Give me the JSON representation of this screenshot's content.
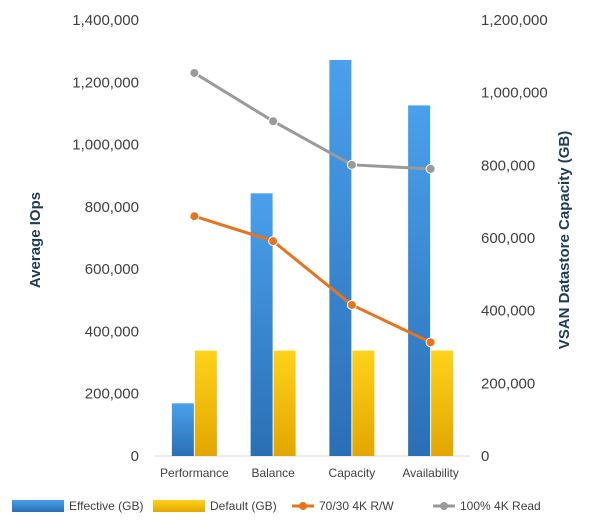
{
  "chart_data": {
    "type": "bar",
    "categories": [
      "Performance",
      "Balance",
      "Capacity",
      "Availability"
    ],
    "series": [
      {
        "name": "Effective (GB)",
        "kind": "bar",
        "axis": "right",
        "values": [
          145000,
          723000,
          1090000,
          965000
        ],
        "color": "#3a8edb"
      },
      {
        "name": "Default (GB)",
        "kind": "bar",
        "axis": "right",
        "values": [
          290000,
          290000,
          290000,
          290000
        ],
        "color": "#f5c000"
      },
      {
        "name": "70/30 4K R/W",
        "kind": "line",
        "axis": "left",
        "values": [
          770000,
          690000,
          485000,
          365000
        ],
        "color": "#e8731f"
      },
      {
        "name": "100% 4K Read",
        "kind": "line",
        "axis": "left",
        "values": [
          1230000,
          1075000,
          935000,
          922000
        ],
        "color": "#9a9a9a"
      }
    ],
    "ylabel": "Average IOps",
    "y2label": "VSAN Datastore Capacity (GB)",
    "ylim": [
      0,
      1400000
    ],
    "y2lim": [
      0,
      1200000
    ],
    "yticks": [
      "0",
      "200,000",
      "400,000",
      "600,000",
      "800,000",
      "1,000,000",
      "1,200,000",
      "1,400,000"
    ],
    "y2ticks": [
      "0",
      "200,000",
      "400,000",
      "600,000",
      "800,000",
      "1,000,000",
      "1,200,000"
    ],
    "grid": false,
    "legend": "bottom"
  }
}
